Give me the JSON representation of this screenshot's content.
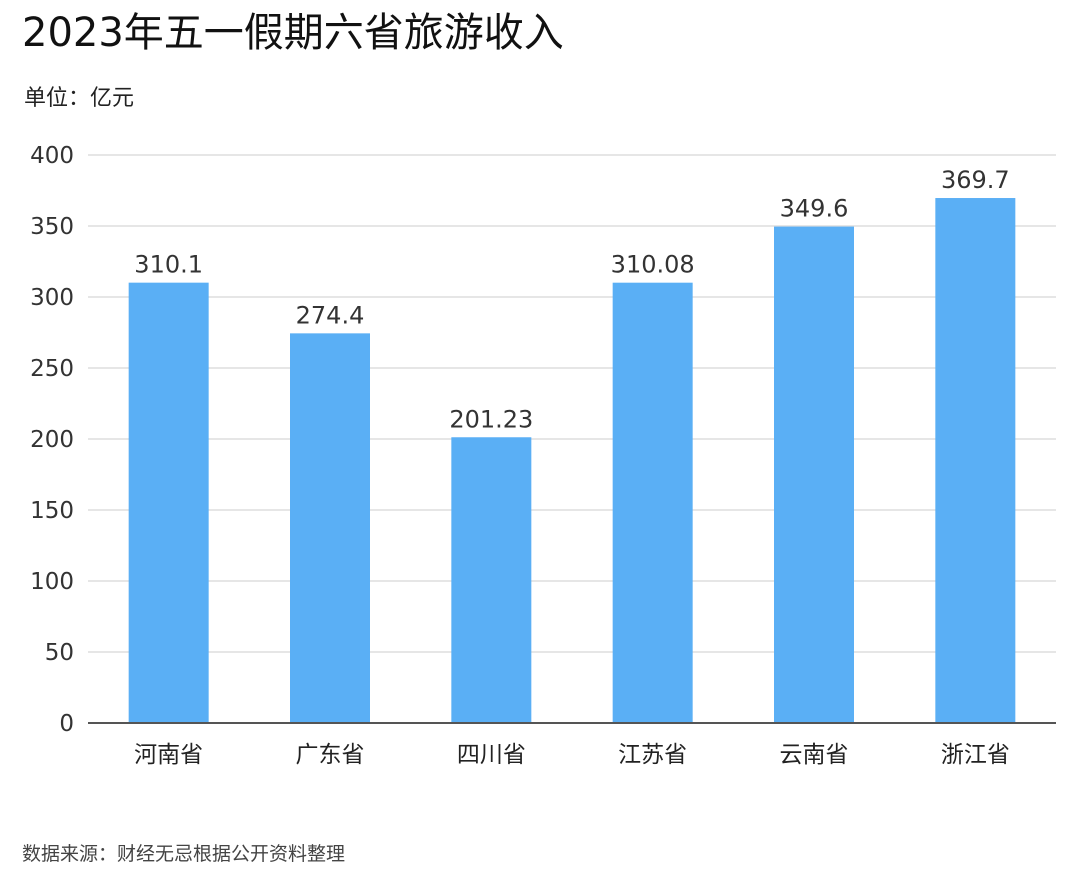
{
  "chart_data": {
    "type": "bar",
    "title": "2023年五一假期六省旅游收入",
    "unit_label": "单位：亿元",
    "source": "数据来源：财经无忌根据公开资料整理",
    "categories": [
      "河南省",
      "广东省",
      "四川省",
      "江苏省",
      "云南省",
      "浙江省"
    ],
    "values": [
      310.1,
      274.4,
      201.23,
      310.08,
      349.6,
      369.7
    ],
    "value_labels": [
      "310.1",
      "274.4",
      "201.23",
      "310.08",
      "349.6",
      "369.7"
    ],
    "ylim": [
      0,
      400
    ],
    "yticks": [
      0,
      50,
      100,
      150,
      200,
      250,
      300,
      350,
      400
    ],
    "grid": true,
    "legend": "none",
    "bar_color": "#5aaff5",
    "grid_color": "#dddddd",
    "axis_color": "#555555"
  }
}
